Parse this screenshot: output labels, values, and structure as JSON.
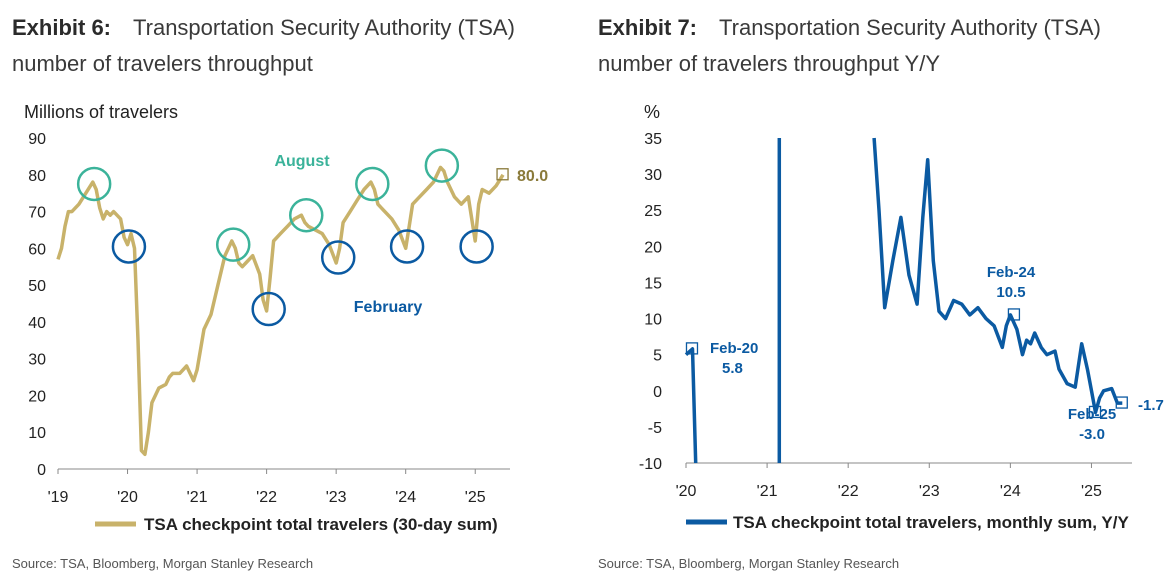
{
  "colors": {
    "gold": "#C8B26A",
    "gold_text": "#8A7A3A",
    "teal": "#3BB39A",
    "blue": "#0B5AA2",
    "axis": "#888888"
  },
  "left": {
    "exhibit": "Exhibit 6:",
    "title_line1": "Transportation Security Authority (TSA)",
    "title_line2": "number of travelers throughput",
    "source": "Source: TSA, Bloomberg, Morgan Stanley Research"
  },
  "right": {
    "exhibit": "Exhibit 7:",
    "title_line1": "Transportation Security Authority (TSA)",
    "title_line2": "number of travelers throughput Y/Y",
    "source": "Source: TSA, Bloomberg, Morgan Stanley Research"
  },
  "chart_data": [
    {
      "type": "line",
      "ylabel": "Millions of travelers",
      "ylim": [
        0,
        90
      ],
      "yticks": [
        0,
        10,
        20,
        30,
        40,
        50,
        60,
        70,
        80,
        90
      ],
      "xlim": [
        2019.0,
        2025.5
      ],
      "xticks": [
        {
          "v": 2019,
          "label": "'19"
        },
        {
          "v": 2020,
          "label": "'20"
        },
        {
          "v": 2021,
          "label": "'21"
        },
        {
          "v": 2022,
          "label": "'22"
        },
        {
          "v": 2023,
          "label": "'23"
        },
        {
          "v": 2024,
          "label": "'24"
        },
        {
          "v": 2025,
          "label": "'25"
        }
      ],
      "legend": "TSA checkpoint total travelers (30-day sum)",
      "legend_position": "bottom",
      "end_label": "80.0",
      "annotations": [
        {
          "text": "August",
          "color": "teal"
        },
        {
          "text": "February",
          "color": "blue"
        }
      ],
      "series": [
        {
          "name": "TSA checkpoint total travelers (30-day sum)",
          "x": [
            2019.0,
            2019.05,
            2019.1,
            2019.15,
            2019.2,
            2019.3,
            2019.4,
            2019.5,
            2019.55,
            2019.6,
            2019.65,
            2019.7,
            2019.75,
            2019.8,
            2019.9,
            2019.95,
            2020.0,
            2020.05,
            2020.1,
            2020.15,
            2020.2,
            2020.25,
            2020.3,
            2020.35,
            2020.45,
            2020.55,
            2020.6,
            2020.65,
            2020.75,
            2020.85,
            2020.95,
            2021.0,
            2021.1,
            2021.2,
            2021.3,
            2021.4,
            2021.5,
            2021.55,
            2021.6,
            2021.65,
            2021.7,
            2021.8,
            2021.9,
            2021.95,
            2022.0,
            2022.05,
            2022.1,
            2022.2,
            2022.3,
            2022.4,
            2022.5,
            2022.55,
            2022.6,
            2022.7,
            2022.8,
            2022.9,
            2023.0,
            2023.05,
            2023.1,
            2023.2,
            2023.3,
            2023.4,
            2023.5,
            2023.55,
            2023.6,
            2023.7,
            2023.8,
            2023.9,
            2024.0,
            2024.05,
            2024.1,
            2024.2,
            2024.3,
            2024.4,
            2024.5,
            2024.55,
            2024.6,
            2024.7,
            2024.8,
            2024.9,
            2025.0,
            2025.05,
            2025.1,
            2025.2,
            2025.3,
            2025.4
          ],
          "values": [
            57,
            60,
            66,
            70,
            70,
            72,
            75,
            78,
            76,
            71,
            68,
            70,
            69,
            70,
            68,
            63,
            61,
            64,
            60,
            35,
            5,
            4,
            10,
            18,
            22,
            23,
            25,
            26,
            26,
            28,
            24,
            27,
            38,
            42,
            50,
            58,
            62,
            60,
            56,
            55,
            56,
            58,
            53,
            46,
            43,
            52,
            62,
            64,
            66,
            68,
            69,
            67,
            66,
            65,
            64,
            61,
            56,
            60,
            67,
            70,
            73,
            76,
            78,
            76,
            72,
            70,
            68,
            65,
            60,
            66,
            72,
            74,
            76,
            78,
            82,
            81,
            78,
            74,
            72,
            74,
            62,
            72,
            76,
            75,
            77,
            80
          ]
        }
      ]
    },
    {
      "type": "line",
      "ylabel": "%",
      "ylim": [
        -10,
        35
      ],
      "yticks": [
        -10,
        -5,
        0,
        5,
        10,
        15,
        20,
        25,
        30,
        35
      ],
      "xlim": [
        2020.0,
        2025.5
      ],
      "xticks": [
        {
          "v": 2020,
          "label": "'20"
        },
        {
          "v": 2021,
          "label": "'21"
        },
        {
          "v": 2022,
          "label": "'22"
        },
        {
          "v": 2023,
          "label": "'23"
        },
        {
          "v": 2024,
          "label": "'24"
        },
        {
          "v": 2025,
          "label": "'25"
        }
      ],
      "legend": "TSA checkpoint total travelers, monthly sum, Y/Y",
      "legend_position": "bottom",
      "annotations": [
        {
          "label": "Feb-20",
          "value": "5.8"
        },
        {
          "label": "Feb-24",
          "value": "10.5"
        },
        {
          "label": "Feb-25",
          "value": "-3.0"
        },
        {
          "value": "-1.7"
        }
      ],
      "series": [
        {
          "name": "TSA checkpoint total travelers, monthly sum, Y/Y",
          "segments": [
            {
              "x": [
                2020.0,
                2020.08,
                2020.12
              ],
              "values": [
                5.0,
                5.8,
                -10
              ]
            },
            {
              "x": [
                2021.15,
                2021.15
              ],
              "values": [
                -10,
                35
              ]
            },
            {
              "x": [
                2022.32,
                2022.38,
                2022.45,
                2022.55,
                2022.65,
                2022.75,
                2022.85,
                2022.92,
                2022.98,
                2023.05,
                2023.12,
                2023.2,
                2023.3,
                2023.4,
                2023.5,
                2023.6,
                2023.7,
                2023.8,
                2023.9,
                2023.95,
                2024.0,
                2024.08,
                2024.15,
                2024.2,
                2024.25,
                2024.3,
                2024.38,
                2024.45,
                2024.55,
                2024.6,
                2024.7,
                2024.8,
                2024.88,
                2024.95,
                2025.0,
                2025.05,
                2025.1,
                2025.15,
                2025.25,
                2025.32,
                2025.38
              ],
              "values": [
                35,
                25,
                11.5,
                18,
                24,
                16,
                12,
                24,
                32,
                18,
                11,
                10,
                12.5,
                12,
                10.5,
                11.5,
                10,
                9,
                6,
                9,
                10.5,
                8.5,
                5,
                7,
                6.5,
                8,
                6,
                5,
                5.5,
                3,
                1,
                0.5,
                6.5,
                3,
                0,
                -3,
                -1,
                0,
                0.3,
                -1.7,
                -1.7
              ]
            }
          ]
        }
      ]
    }
  ]
}
